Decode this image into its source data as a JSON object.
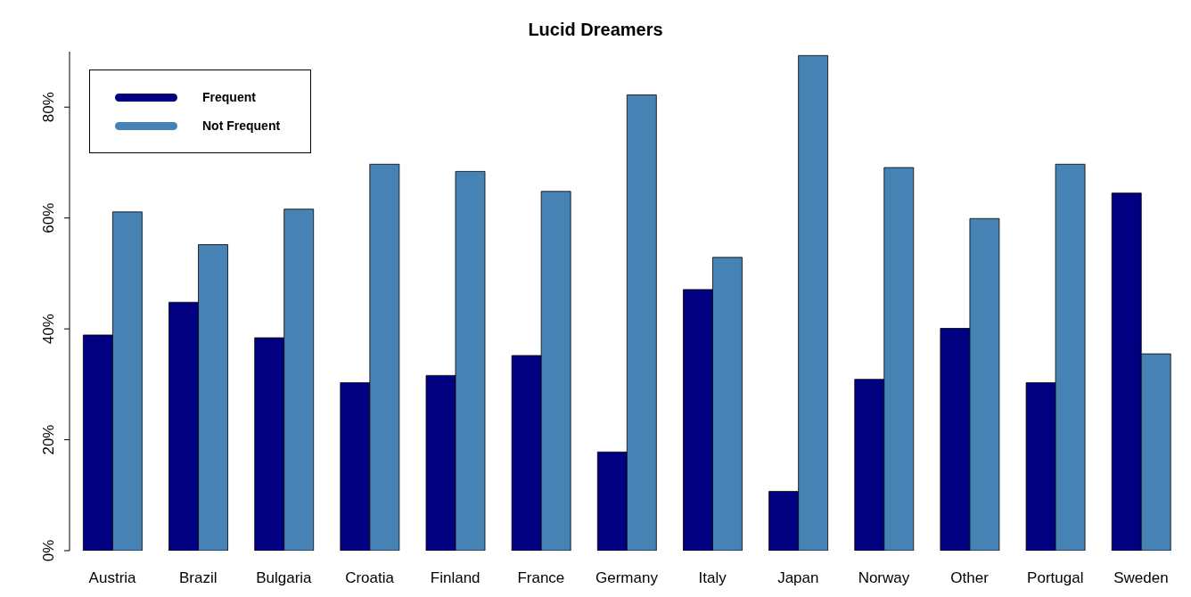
{
  "chart_data": {
    "type": "bar",
    "title": "Lucid Dreamers",
    "categories": [
      "Austria",
      "Brazil",
      "Bulgaria",
      "Croatia",
      "Finland",
      "France",
      "Germany",
      "Italy",
      "Japan",
      "Norway",
      "Other",
      "Portugal",
      "Sweden"
    ],
    "series": [
      {
        "name": "Frequent",
        "color": "#000080",
        "values": [
          38.9,
          44.8,
          38.4,
          30.3,
          31.6,
          35.2,
          17.8,
          47.1,
          10.7,
          30.9,
          40.1,
          30.3,
          64.5
        ]
      },
      {
        "name": "Not Frequent",
        "color": "#4682b4",
        "values": [
          61.1,
          55.2,
          61.6,
          69.7,
          68.4,
          64.8,
          82.2,
          52.9,
          89.3,
          69.1,
          59.9,
          69.7,
          35.5
        ]
      }
    ],
    "ylim": [
      0,
      90
    ],
    "yticks": [
      {
        "value": 0,
        "label": "0%"
      },
      {
        "value": 20,
        "label": "20%"
      },
      {
        "value": 40,
        "label": "40%"
      },
      {
        "value": 60,
        "label": "60%"
      },
      {
        "value": 80,
        "label": "80%"
      }
    ],
    "grid": false,
    "legend": "top left"
  }
}
